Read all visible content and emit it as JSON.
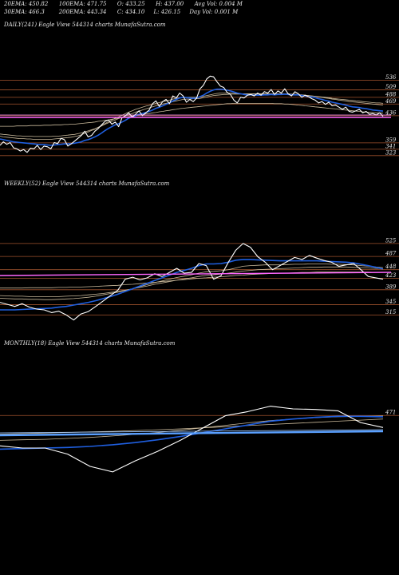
{
  "header": {
    "row1": [
      {
        "label": "20EMA:",
        "value": "450.82"
      },
      {
        "label": "100EMA:",
        "value": "471.75"
      },
      {
        "label": "O:",
        "value": "433.25"
      },
      {
        "label": "H:",
        "value": "437.00"
      },
      {
        "label": "Avg Vol:",
        "value": "0.004",
        "suffix": "M"
      }
    ],
    "row2": [
      {
        "label": "30EMA:",
        "value": "466.3"
      },
      {
        "label": "200EMA:",
        "value": "443.34"
      },
      {
        "label": "C:",
        "value": "434.10"
      },
      {
        "label": "L:",
        "value": "426.15"
      },
      {
        "label": "Day Vol:",
        "value": "0.001",
        "suffix": "M"
      }
    ]
  },
  "colors": {
    "background": "#000000",
    "price": "#ffffff",
    "ema_blue": "#1f5fe0",
    "ema_tan": "#c8b89a",
    "level_line": "#a0522d",
    "magenta": "#ff66ff",
    "steel": "#5aa0ff"
  },
  "chart_data": [
    {
      "type": "line",
      "panel": "daily",
      "title": "DAILY(241) Eagle  View  544314  charts MunafaSutra.com",
      "levels": [
        "536",
        "509",
        "488",
        "469",
        "436",
        "359",
        "341",
        "323"
      ],
      "level_values": [
        536,
        509,
        488,
        469,
        436,
        359,
        341,
        323
      ],
      "ylim": [
        300,
        560
      ],
      "series": [
        {
          "role": "price",
          "values": [
            352,
            362,
            355,
            360,
            345,
            342,
            336,
            340,
            332,
            344,
            342,
            352,
            340,
            350,
            348,
            342,
            360,
            357,
            372,
            368,
            350,
            356,
            364,
            372,
            380,
            392,
            376,
            380,
            392,
            400,
            410,
            420,
            424,
            412,
            418,
            405,
            430,
            436,
            444,
            432,
            440,
            450,
            436,
            444,
            452,
            470,
            478,
            462,
            476,
            482,
            470,
            492,
            486,
            500,
            492,
            474,
            482,
            476,
            486,
            512,
            522,
            540,
            548,
            546,
            532,
            520,
            516,
            502,
            496,
            480,
            472,
            488,
            486,
            494,
            496,
            492,
            500,
            494,
            504,
            500,
            510,
            496,
            506,
            500,
            512,
            498,
            492,
            504,
            498,
            488,
            494,
            490,
            484,
            480,
            472,
            476,
            468,
            474,
            464,
            466,
            460,
            454,
            460,
            448,
            446,
            450,
            454,
            444,
            448,
            440,
            442,
            438,
            444,
            434
          ]
        },
        {
          "role": "ema-short",
          "values": [
            370,
            368,
            366,
            364,
            362,
            361,
            360,
            359,
            358,
            357,
            356,
            355,
            354,
            354,
            353,
            352,
            353,
            354,
            355,
            356,
            356,
            357,
            358,
            360,
            362,
            366,
            368,
            372,
            376,
            381,
            387,
            394,
            400,
            405,
            410,
            413,
            418,
            423,
            429,
            432,
            436,
            440,
            442,
            445,
            448,
            452,
            457,
            460,
            464,
            468,
            472,
            478,
            482,
            486,
            488,
            487,
            486,
            485,
            486,
            490,
            494,
            500,
            505,
            509,
            511,
            511,
            510,
            508,
            506,
            503,
            500,
            498,
            496,
            495,
            495,
            494,
            494,
            494,
            495,
            495,
            496,
            495,
            496,
            496,
            497,
            496,
            495,
            495,
            495,
            493,
            492,
            490,
            489,
            487,
            484,
            482,
            479,
            477,
            474,
            472,
            470,
            468,
            466,
            463,
            461,
            460,
            459,
            457,
            456,
            454,
            452,
            451,
            450,
            449
          ]
        },
        {
          "role": "ema-mid-1",
          "values": [
            378,
            376,
            375,
            374,
            373,
            372,
            371,
            371,
            370,
            370,
            369,
            369,
            369,
            369,
            369,
            369,
            370,
            371,
            372,
            373,
            374,
            375,
            377,
            379,
            382,
            386,
            390,
            394,
            398,
            403,
            408,
            414,
            419,
            424,
            429,
            433,
            437,
            442,
            446,
            450,
            454,
            457,
            460,
            463,
            465,
            468,
            471,
            473,
            476,
            478,
            480,
            483,
            485,
            487,
            488,
            488,
            488,
            488,
            488,
            489,
            491,
            493,
            495,
            497,
            499,
            500,
            500,
            500,
            500,
            499,
            499,
            498,
            498,
            498,
            498,
            498,
            498,
            498,
            498,
            498,
            498,
            498,
            498,
            498,
            498,
            498,
            497,
            497,
            496,
            495,
            494,
            493,
            492,
            491,
            489,
            488,
            486,
            485,
            483,
            482,
            480,
            479,
            478,
            476,
            475,
            474,
            473,
            472,
            471,
            470,
            469,
            468,
            467,
            466
          ]
        },
        {
          "role": "ema-mid-2",
          "values": [
            384,
            383,
            382,
            381,
            380,
            379,
            379,
            378,
            378,
            378,
            377,
            377,
            377,
            377,
            377,
            377,
            378,
            378,
            379,
            380,
            381,
            382,
            383,
            385,
            387,
            390,
            393,
            396,
            399,
            403,
            407,
            412,
            416,
            420,
            424,
            428,
            431,
            435,
            439,
            442,
            446,
            449,
            452,
            455,
            458,
            461,
            464,
            466,
            469,
            471,
            473,
            476,
            478,
            480,
            482,
            483,
            483,
            484,
            484,
            485,
            487,
            489,
            491,
            493,
            494,
            495,
            496,
            496,
            497,
            497,
            497,
            497,
            497,
            497,
            497,
            497,
            497,
            497,
            497,
            497,
            497,
            497,
            497,
            497,
            497,
            497,
            496,
            496,
            495,
            495,
            494,
            493,
            492,
            491,
            490,
            489,
            488,
            487,
            485,
            484,
            483,
            482,
            481,
            480,
            479,
            478,
            477,
            476,
            475,
            474,
            473,
            472,
            472,
            471
          ]
        },
        {
          "role": "ema-long",
          "values": [
            406,
            406,
            406,
            406,
            406,
            407,
            407,
            407,
            407,
            408,
            408,
            408,
            408,
            409,
            409,
            409,
            410,
            410,
            410,
            411,
            411,
            412,
            412,
            413,
            414,
            415,
            416,
            417,
            418,
            420,
            421,
            423,
            424,
            426,
            427,
            429,
            430,
            432,
            433,
            435,
            436,
            438,
            439,
            441,
            442,
            444,
            445,
            447,
            448,
            450,
            451,
            453,
            454,
            456,
            457,
            458,
            459,
            460,
            461,
            462,
            463,
            464,
            465,
            466,
            467,
            468,
            469,
            470,
            470,
            471,
            471,
            471,
            471,
            471,
            471,
            471,
            471,
            471,
            471,
            471,
            471,
            470,
            470,
            470,
            469,
            469,
            468,
            467,
            466,
            465,
            464,
            463,
            462,
            461,
            460,
            459,
            458,
            457,
            456,
            455,
            454,
            453,
            452,
            451,
            450,
            449,
            448,
            447,
            446,
            446,
            445,
            444,
            444,
            443
          ]
        }
      ]
    },
    {
      "type": "line",
      "panel": "weekly",
      "title": "WEEKLY(52) Eagle  View  544314  charts MunafaSutra.com",
      "levels": [
        "525",
        "487",
        "448",
        "423",
        "389",
        "345",
        "315"
      ],
      "level_values": [
        525,
        487,
        448,
        423,
        389,
        345,
        315
      ],
      "ylim": [
        290,
        560
      ],
      "series": [
        {
          "role": "price",
          "values": [
            352,
            346,
            340,
            348,
            338,
            332,
            330,
            322,
            326,
            315,
            300,
            318,
            325,
            340,
            356,
            372,
            388,
            420,
            426,
            418,
            424,
            436,
            428,
            440,
            452,
            438,
            440,
            466,
            460,
            420,
            430,
            470,
            505,
            525,
            514,
            486,
            470,
            448,
            460,
            472,
            484,
            478,
            490,
            482,
            475,
            470,
            458,
            462,
            466,
            448,
            428,
            424,
            420
          ]
        },
        {
          "role": "ema-short",
          "values": [
            330,
            330,
            330,
            331,
            332,
            333,
            334,
            335,
            338,
            340,
            344,
            348,
            352,
            357,
            363,
            369,
            376,
            384,
            392,
            400,
            408,
            416,
            424,
            432,
            440,
            446,
            452,
            460,
            465,
            465,
            466,
            470,
            476,
            478,
            478,
            477,
            476,
            475,
            474,
            474,
            474,
            474,
            474,
            474,
            473,
            472,
            471,
            470,
            468,
            464,
            460,
            455,
            450
          ]
        },
        {
          "role": "ema-mid-1",
          "values": [
            364,
            363,
            362,
            362,
            361,
            361,
            360,
            360,
            361,
            362,
            363,
            365,
            367,
            370,
            374,
            378,
            382,
            387,
            392,
            398,
            404,
            410,
            415,
            420,
            425,
            429,
            433,
            438,
            442,
            443,
            445,
            448,
            453,
            458,
            460,
            461,
            462,
            462,
            462,
            463,
            464,
            464,
            465,
            465,
            465,
            464,
            464,
            463,
            462,
            460,
            458,
            456,
            454
          ]
        },
        {
          "role": "ema-mid-2",
          "values": [
            372,
            371,
            370,
            370,
            369,
            369,
            369,
            369,
            369,
            370,
            371,
            372,
            374,
            376,
            378,
            381,
            384,
            388,
            392,
            396,
            400,
            405,
            409,
            413,
            417,
            421,
            424,
            428,
            431,
            433,
            435,
            438,
            441,
            444,
            446,
            448,
            449,
            450,
            451,
            452,
            453,
            454,
            455,
            455,
            456,
            456,
            456,
            456,
            455,
            454,
            453,
            452,
            451
          ]
        },
        {
          "role": "ema-long",
          "values": [
            394,
            394,
            394,
            394,
            395,
            395,
            395,
            395,
            396,
            396,
            397,
            397,
            398,
            399,
            400,
            401,
            402,
            404,
            405,
            407,
            409,
            411,
            413,
            415,
            417,
            419,
            421,
            423,
            424,
            426,
            427,
            429,
            431,
            432,
            434,
            435,
            436,
            437,
            438,
            438,
            439,
            440,
            440,
            441,
            441,
            441,
            441,
            441,
            441,
            441,
            441,
            440,
            440
          ]
        }
      ]
    },
    {
      "type": "line",
      "panel": "monthly",
      "title": "MONTHLY(18) Eagle  View  544314  charts MunafaSutra.com",
      "levels": [
        "471"
      ],
      "level_values": [
        471
      ],
      "ylim": [
        180,
        530
      ],
      "series": [
        {
          "role": "price",
          "values": [
            360,
            352,
            352,
            330,
            285,
            265,
            305,
            340,
            380,
            425,
            470,
            485,
            505,
            495,
            493,
            488,
            445,
            427
          ]
        },
        {
          "role": "ema-short",
          "values": [
            348,
            350,
            352,
            354,
            358,
            364,
            372,
            382,
            394,
            408,
            422,
            436,
            450,
            458,
            464,
            468,
            468,
            466
          ]
        },
        {
          "role": "ema-mid-1",
          "values": [
            380,
            382,
            384,
            387,
            391,
            396,
            402,
            409,
            417,
            426,
            435,
            444,
            452,
            458,
            463,
            466,
            468,
            469
          ]
        },
        {
          "role": "ema-long",
          "values": [
            403,
            405,
            407,
            409,
            411,
            413,
            416,
            419,
            422,
            426,
            430,
            434,
            438,
            442,
            446,
            450,
            454,
            458
          ]
        }
      ]
    }
  ]
}
